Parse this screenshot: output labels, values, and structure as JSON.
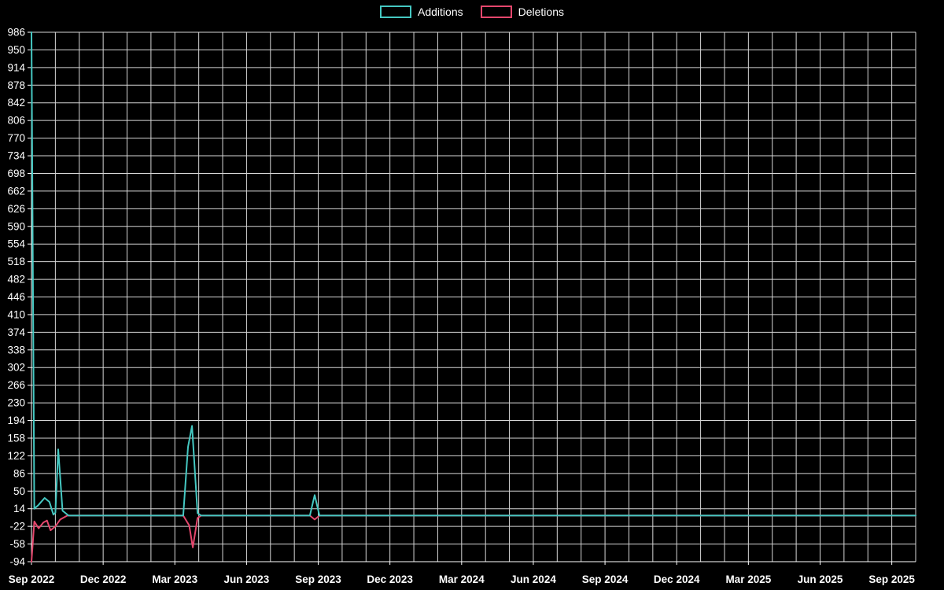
{
  "chart_data": {
    "type": "line",
    "title": "",
    "background": "#000000",
    "grid": true,
    "grid_color": "#d6d6d6",
    "axis_color": "#ffffff",
    "text_color": "#ffffff",
    "legend_position": "top-center",
    "legend": [
      {
        "label": "Additions",
        "color": "#45c8c2"
      },
      {
        "label": "Deletions",
        "color": "#e5476d"
      }
    ],
    "x_axis": {
      "unit": "months since Sep 2022",
      "range": [
        0,
        37
      ],
      "minor_grid_every_months": 1,
      "tick_labels": [
        {
          "label": "Sep 2022",
          "month": 0
        },
        {
          "label": "Dec 2022",
          "month": 3
        },
        {
          "label": "Mar 2023",
          "month": 6
        },
        {
          "label": "Jun 2023",
          "month": 9
        },
        {
          "label": "Sep 2023",
          "month": 12
        },
        {
          "label": "Dec 2023",
          "month": 15
        },
        {
          "label": "Mar 2024",
          "month": 18
        },
        {
          "label": "Jun 2024",
          "month": 21
        },
        {
          "label": "Sep 2024",
          "month": 24
        },
        {
          "label": "Dec 2024",
          "month": 27
        },
        {
          "label": "Mar 2025",
          "month": 30
        },
        {
          "label": "Jun 2025",
          "month": 33
        },
        {
          "label": "Sep 2025",
          "month": 36
        }
      ]
    },
    "y_axis": {
      "range": [
        -94,
        986
      ],
      "tick_step": 36,
      "tick_labels": [
        986,
        950,
        914,
        878,
        842,
        806,
        770,
        734,
        698,
        662,
        626,
        590,
        554,
        518,
        482,
        446,
        410,
        374,
        338,
        302,
        266,
        230,
        194,
        158,
        122,
        86,
        50,
        14,
        -22,
        -58,
        -94
      ]
    },
    "series": [
      {
        "name": "Deletions",
        "color": "#e5476d",
        "points": [
          [
            0,
            -94
          ],
          [
            0.12,
            -12
          ],
          [
            0.3,
            -26
          ],
          [
            0.5,
            -14
          ],
          [
            0.65,
            -10
          ],
          [
            0.8,
            -30
          ],
          [
            1.0,
            -22
          ],
          [
            1.2,
            -8
          ],
          [
            1.5,
            0
          ],
          [
            6.35,
            0
          ],
          [
            6.6,
            -20
          ],
          [
            6.75,
            -65
          ],
          [
            6.95,
            -5
          ],
          [
            7.1,
            0
          ],
          [
            11.65,
            0
          ],
          [
            11.85,
            -8
          ],
          [
            12.05,
            0
          ],
          [
            37,
            0
          ]
        ]
      },
      {
        "name": "Additions",
        "color": "#45c8c2",
        "points": [
          [
            0,
            986
          ],
          [
            0.12,
            14
          ],
          [
            0.3,
            22
          ],
          [
            0.55,
            36
          ],
          [
            0.75,
            28
          ],
          [
            0.92,
            2
          ],
          [
            1.0,
            6
          ],
          [
            1.12,
            135
          ],
          [
            1.3,
            10
          ],
          [
            1.55,
            0
          ],
          [
            6.35,
            0
          ],
          [
            6.55,
            140
          ],
          [
            6.72,
            183
          ],
          [
            6.95,
            5
          ],
          [
            7.1,
            0
          ],
          [
            11.65,
            0
          ],
          [
            11.85,
            42
          ],
          [
            12.05,
            0
          ],
          [
            37,
            0
          ]
        ]
      }
    ]
  }
}
